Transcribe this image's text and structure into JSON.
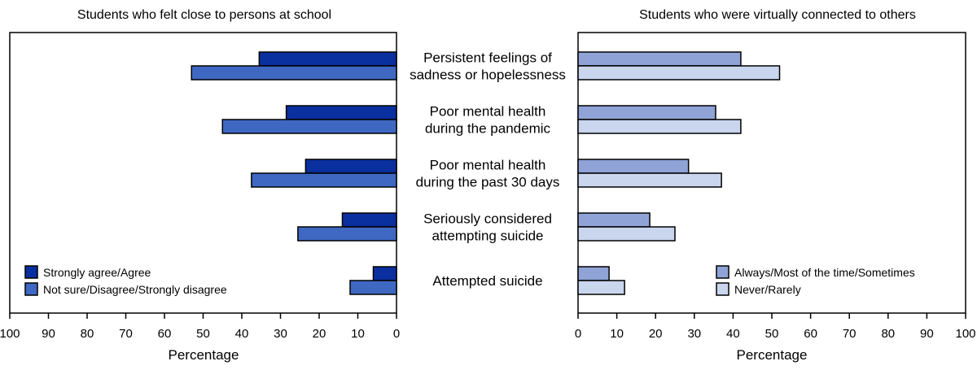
{
  "chart_data": [
    {
      "type": "bar",
      "orientation": "horizontal",
      "x_direction": "reversed",
      "title": "Students who felt close to persons at school",
      "xlabel": "Percentage",
      "xlim": [
        0,
        100
      ],
      "xticks": [
        100,
        90,
        80,
        70,
        60,
        50,
        40,
        30,
        20,
        10,
        0
      ],
      "categories": [
        "Persistent feelings of sadness or hopelessness",
        "Poor mental health during the pandemic",
        "Poor mental health during the past 30 days",
        "Seriously considered attempting suicide",
        "Attempted suicide"
      ],
      "series": [
        {
          "name": "Strongly agree/Agree",
          "color": "#0a2f9e",
          "values": [
            35.5,
            28.5,
            23.5,
            14,
            6
          ]
        },
        {
          "name": "Not sure/Disagree/Strongly disagree",
          "color": "#3f68c2",
          "values": [
            53,
            45,
            37.5,
            25.5,
            12
          ]
        }
      ],
      "legend_position": "bottom-left"
    },
    {
      "type": "bar",
      "orientation": "horizontal",
      "title": "Students who were virtually connected to others",
      "xlabel": "Percentage",
      "xlim": [
        0,
        100
      ],
      "xticks": [
        0,
        10,
        20,
        30,
        40,
        50,
        60,
        70,
        80,
        90,
        100
      ],
      "categories": [
        "Persistent feelings of sadness or hopelessness",
        "Poor mental health during the pandemic",
        "Poor mental health during the past 30 days",
        "Seriously considered attempting suicide",
        "Attempted suicide"
      ],
      "series": [
        {
          "name": "Always/Most of the time/Sometimes",
          "color": "#8fa3d6",
          "values": [
            42,
            35.5,
            28.5,
            18.5,
            8
          ]
        },
        {
          "name": "Never/Rarely",
          "color": "#cad5ee",
          "values": [
            52,
            42,
            37,
            25,
            12
          ]
        }
      ],
      "legend_position": "bottom-right"
    }
  ],
  "category_labels": [
    [
      "Persistent feelings of",
      "sadness or hopelessness"
    ],
    [
      "Poor mental health",
      "during the pandemic"
    ],
    [
      "Poor mental health",
      "during the past 30 days"
    ],
    [
      "Seriously considered",
      "attempting suicide"
    ],
    [
      "Attempted suicide"
    ]
  ]
}
